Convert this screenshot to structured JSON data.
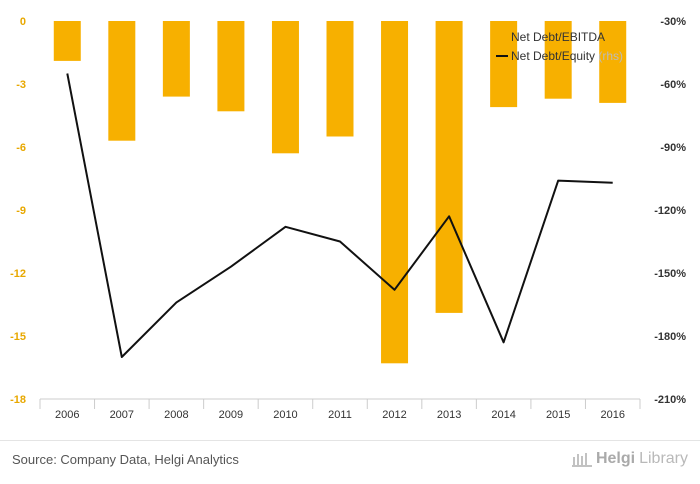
{
  "chart_data": {
    "type": "bar+line",
    "categories": [
      "2006",
      "2007",
      "2008",
      "2009",
      "2010",
      "2011",
      "2012",
      "2013",
      "2014",
      "2015",
      "2016"
    ],
    "series": [
      {
        "name": "Net Debt/EBITDA",
        "type": "bar",
        "axis": "left",
        "color": "#f7b000",
        "values": [
          -1.9,
          -5.7,
          -3.6,
          -4.3,
          -6.3,
          -5.5,
          -16.3,
          -13.9,
          -4.1,
          -3.7,
          -3.9
        ]
      },
      {
        "name": "Net Debt/Equity",
        "legend_suffix": "(rhs)",
        "type": "line",
        "axis": "right",
        "color": "#111111",
        "values": [
          -55,
          -190,
          -164,
          -147,
          -128,
          -135,
          -158,
          -123,
          -183,
          -106,
          -107
        ]
      }
    ],
    "left_axis": {
      "min": -18,
      "max": 0,
      "color": "#e8a800",
      "ticks": [
        0,
        -3,
        -6,
        -9,
        -12,
        -15,
        -18
      ],
      "tick_labels": [
        "0",
        "-3",
        "-6",
        "-9",
        "-12",
        "-15",
        "-18"
      ]
    },
    "right_axis": {
      "min": -210,
      "max": -30,
      "color": "#333333",
      "ticks": [
        -30,
        -60,
        -90,
        -120,
        -150,
        -180,
        -210
      ],
      "tick_labels": [
        "-30%",
        "-60%",
        "-90%",
        "-120%",
        "-150%",
        "-180%",
        "-210%"
      ]
    },
    "grid": false,
    "legend_position": "top-right"
  },
  "footer": {
    "source": "Source: Company Data, Helgi Analytics",
    "brand_left": "Helgi",
    "brand_right": "Library"
  }
}
